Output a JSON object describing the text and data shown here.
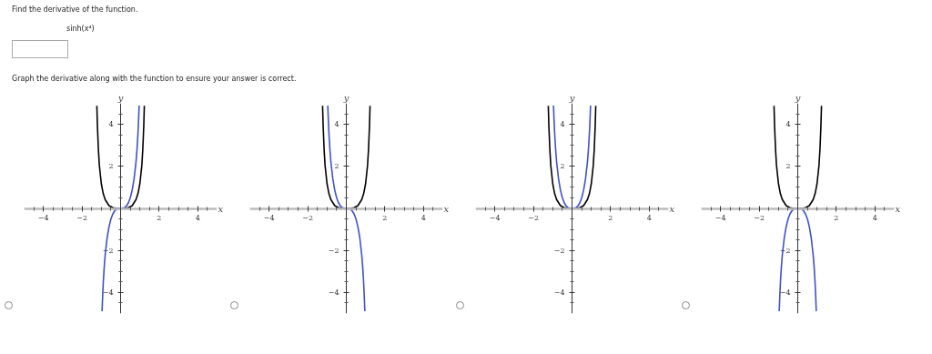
{
  "chart_data": [
    {
      "type": "other",
      "annotations": [
        "Find the derivative of the function.",
        "sinh(x⁴)",
        "Graph the derivative along with the function to ensure your answer is correct."
      ]
    },
    {
      "type": "line",
      "xlabel": "x",
      "ylabel": "y",
      "xlim": [
        -5,
        5
      ],
      "ylim": [
        -5,
        5
      ],
      "xticks": [
        {
          "value": -4.5,
          "label": null
        },
        {
          "value": -4,
          "label": "−4"
        },
        {
          "value": -3.5,
          "label": null
        },
        {
          "value": -3,
          "label": null
        },
        {
          "value": -2.5,
          "label": null
        },
        {
          "value": -2,
          "label": "−2"
        },
        {
          "value": -1.5,
          "label": null
        },
        {
          "value": -1,
          "label": null
        },
        {
          "value": -0.5,
          "label": null
        },
        {
          "value": 0.5,
          "label": null
        },
        {
          "value": 1,
          "label": null
        },
        {
          "value": 1.5,
          "label": null
        },
        {
          "value": 2,
          "label": "2"
        },
        {
          "value": 2.5,
          "label": null
        },
        {
          "value": 3,
          "label": null
        },
        {
          "value": 3.5,
          "label": null
        },
        {
          "value": 4,
          "label": "4"
        },
        {
          "value": 4.5,
          "label": null
        }
      ],
      "yticks": [
        {
          "value": -4.5,
          "label": null
        },
        {
          "value": -4,
          "label": "−4"
        },
        {
          "value": -3.5,
          "label": null
        },
        {
          "value": -3,
          "label": null
        },
        {
          "value": -2.5,
          "label": null
        },
        {
          "value": -2,
          "label": "−2"
        },
        {
          "value": -1.5,
          "label": null
        },
        {
          "value": -1,
          "label": null
        },
        {
          "value": -0.5,
          "label": null
        },
        {
          "value": 0.5,
          "label": null
        },
        {
          "value": 1,
          "label": null
        },
        {
          "value": 1.5,
          "label": null
        },
        {
          "value": 2,
          "label": "2"
        },
        {
          "value": 2.5,
          "label": null
        },
        {
          "value": 3,
          "label": null
        },
        {
          "value": 3.5,
          "label": null
        },
        {
          "value": 4,
          "label": "4"
        },
        {
          "value": 4.5,
          "label": null
        }
      ],
      "series": [
        {
          "color": "#000000",
          "x": [
            -1.23,
            -1.2,
            -1.15,
            -1.1,
            -1,
            -0.9,
            -0.8,
            -0.6,
            -0.4,
            -0.2,
            0,
            0.2,
            0.4,
            0.6,
            0.8,
            0.9,
            1,
            1.1,
            1.15,
            1.2,
            1.23
          ],
          "values": [
            4.88,
            3.91,
            2.79,
            2.04,
            1.18,
            0.7,
            0.42,
            0.13,
            0.03,
            0,
            0,
            0,
            0.03,
            0.13,
            0.42,
            0.7,
            1.18,
            2.04,
            2.79,
            3.91,
            4.88
          ]
        },
        {
          "color": "#3f51c6",
          "x": [
            -0.96,
            -0.93,
            -0.9,
            -0.85,
            -0.8,
            -0.7,
            -0.6,
            -0.5,
            -0.4,
            -0.3,
            -0.2,
            0,
            0.2,
            0.3,
            0.4,
            0.5,
            0.6,
            0.7,
            0.8,
            0.85,
            0.9,
            0.93,
            0.96
          ],
          "values": [
            -4.89,
            -4.16,
            -3.56,
            -2.8,
            -2.22,
            -1.41,
            -0.87,
            -0.5,
            -0.26,
            -0.11,
            -0.03,
            0,
            0.03,
            0.11,
            0.26,
            0.5,
            0.87,
            1.41,
            2.22,
            2.8,
            3.56,
            4.16,
            4.89
          ]
        }
      ]
    },
    {
      "type": "line",
      "xlabel": "x",
      "ylabel": "y",
      "xlim": [
        -5,
        5
      ],
      "ylim": [
        -5,
        5
      ],
      "xticks": [
        {
          "value": -4.5,
          "label": null
        },
        {
          "value": -4,
          "label": "−4"
        },
        {
          "value": -3.5,
          "label": null
        },
        {
          "value": -3,
          "label": null
        },
        {
          "value": -2.5,
          "label": null
        },
        {
          "value": -2,
          "label": "−2"
        },
        {
          "value": -1.5,
          "label": null
        },
        {
          "value": -1,
          "label": null
        },
        {
          "value": -0.5,
          "label": null
        },
        {
          "value": 0.5,
          "label": null
        },
        {
          "value": 1,
          "label": null
        },
        {
          "value": 1.5,
          "label": null
        },
        {
          "value": 2,
          "label": "2"
        },
        {
          "value": 2.5,
          "label": null
        },
        {
          "value": 3,
          "label": null
        },
        {
          "value": 3.5,
          "label": null
        },
        {
          "value": 4,
          "label": "4"
        },
        {
          "value": 4.5,
          "label": null
        }
      ],
      "yticks": [
        {
          "value": -4.5,
          "label": null
        },
        {
          "value": -4,
          "label": "−4"
        },
        {
          "value": -3.5,
          "label": null
        },
        {
          "value": -3,
          "label": null
        },
        {
          "value": -2.5,
          "label": null
        },
        {
          "value": -2,
          "label": "−2"
        },
        {
          "value": -1.5,
          "label": null
        },
        {
          "value": -1,
          "label": null
        },
        {
          "value": -0.5,
          "label": null
        },
        {
          "value": 0.5,
          "label": null
        },
        {
          "value": 1,
          "label": null
        },
        {
          "value": 1.5,
          "label": null
        },
        {
          "value": 2,
          "label": "2"
        },
        {
          "value": 2.5,
          "label": null
        },
        {
          "value": 3,
          "label": null
        },
        {
          "value": 3.5,
          "label": null
        },
        {
          "value": 4,
          "label": "4"
        },
        {
          "value": 4.5,
          "label": null
        }
      ],
      "series": [
        {
          "color": "#000000",
          "x": [
            -1.23,
            -1.2,
            -1.15,
            -1.1,
            -1,
            -0.9,
            -0.8,
            -0.6,
            -0.4,
            -0.2,
            0,
            0.2,
            0.4,
            0.6,
            0.8,
            0.9,
            1,
            1.1,
            1.15,
            1.2,
            1.23
          ],
          "values": [
            4.88,
            3.91,
            2.79,
            2.04,
            1.18,
            0.7,
            0.42,
            0.13,
            0.03,
            0,
            0,
            0,
            0.03,
            0.13,
            0.42,
            0.7,
            1.18,
            2.04,
            2.79,
            3.91,
            4.88
          ]
        },
        {
          "color": "#3f51c6",
          "x": [
            -0.96,
            -0.93,
            -0.9,
            -0.85,
            -0.8,
            -0.7,
            -0.6,
            -0.5,
            -0.4,
            -0.3,
            -0.2,
            0,
            0.2,
            0.3,
            0.4,
            0.5,
            0.6,
            0.7,
            0.8,
            0.85,
            0.9,
            0.93,
            0.96
          ],
          "values": [
            4.89,
            4.16,
            3.56,
            2.8,
            2.22,
            1.41,
            0.87,
            0.5,
            0.26,
            0.11,
            0.03,
            0,
            -0.03,
            -0.11,
            -0.26,
            -0.5,
            -0.87,
            -1.41,
            -2.22,
            -2.8,
            -3.56,
            -4.16,
            -4.89
          ]
        }
      ]
    },
    {
      "type": "line",
      "xlabel": "x",
      "ylabel": "y",
      "xlim": [
        -5,
        5
      ],
      "ylim": [
        -5,
        5
      ],
      "xticks": [
        {
          "value": -4.5,
          "label": null
        },
        {
          "value": -4,
          "label": "−4"
        },
        {
          "value": -3.5,
          "label": null
        },
        {
          "value": -3,
          "label": null
        },
        {
          "value": -2.5,
          "label": null
        },
        {
          "value": -2,
          "label": "−2"
        },
        {
          "value": -1.5,
          "label": null
        },
        {
          "value": -1,
          "label": null
        },
        {
          "value": -0.5,
          "label": null
        },
        {
          "value": 0.5,
          "label": null
        },
        {
          "value": 1,
          "label": null
        },
        {
          "value": 1.5,
          "label": null
        },
        {
          "value": 2,
          "label": "2"
        },
        {
          "value": 2.5,
          "label": null
        },
        {
          "value": 3,
          "label": null
        },
        {
          "value": 3.5,
          "label": null
        },
        {
          "value": 4,
          "label": "4"
        },
        {
          "value": 4.5,
          "label": null
        }
      ],
      "yticks": [
        {
          "value": -4.5,
          "label": null
        },
        {
          "value": -4,
          "label": "−4"
        },
        {
          "value": -3.5,
          "label": null
        },
        {
          "value": -3,
          "label": null
        },
        {
          "value": -2.5,
          "label": null
        },
        {
          "value": -2,
          "label": "−2"
        },
        {
          "value": -1.5,
          "label": null
        },
        {
          "value": -1,
          "label": null
        },
        {
          "value": -0.5,
          "label": null
        },
        {
          "value": 0.5,
          "label": null
        },
        {
          "value": 1,
          "label": null
        },
        {
          "value": 1.5,
          "label": null
        },
        {
          "value": 2,
          "label": "2"
        },
        {
          "value": 2.5,
          "label": null
        },
        {
          "value": 3,
          "label": null
        },
        {
          "value": 3.5,
          "label": null
        },
        {
          "value": 4,
          "label": "4"
        },
        {
          "value": 4.5,
          "label": null
        }
      ],
      "series": [
        {
          "color": "#000000",
          "x": [
            -1.23,
            -1.2,
            -1.15,
            -1.1,
            -1,
            -0.9,
            -0.8,
            -0.6,
            -0.4,
            -0.2,
            0,
            0.2,
            0.4,
            0.6,
            0.8,
            0.9,
            1,
            1.1,
            1.15,
            1.2,
            1.23
          ],
          "values": [
            4.88,
            3.91,
            2.79,
            2.04,
            1.18,
            0.7,
            0.42,
            0.13,
            0.03,
            0,
            0,
            0,
            0.03,
            0.13,
            0.42,
            0.7,
            1.18,
            2.04,
            2.79,
            3.91,
            4.88
          ]
        },
        {
          "color": "#3f51c6",
          "x": [
            -0.96,
            -0.93,
            -0.9,
            -0.85,
            -0.8,
            -0.7,
            -0.6,
            -0.5,
            -0.4,
            -0.3,
            -0.2,
            0,
            0.2,
            0.3,
            0.4,
            0.5,
            0.6,
            0.7,
            0.8,
            0.85,
            0.9,
            0.93,
            0.96
          ],
          "values": [
            4.89,
            4.16,
            3.56,
            2.8,
            2.22,
            1.41,
            0.87,
            0.5,
            0.26,
            0.11,
            0.03,
            0,
            0.03,
            0.11,
            0.26,
            0.5,
            0.87,
            1.41,
            2.22,
            2.8,
            3.56,
            4.16,
            4.89
          ]
        }
      ]
    },
    {
      "type": "line",
      "xlabel": "x",
      "ylabel": "y",
      "xlim": [
        -5,
        5
      ],
      "ylim": [
        -5,
        5
      ],
      "xticks": [
        {
          "value": -4.5,
          "label": null
        },
        {
          "value": -4,
          "label": "−4"
        },
        {
          "value": -3.5,
          "label": null
        },
        {
          "value": -3,
          "label": null
        },
        {
          "value": -2.5,
          "label": null
        },
        {
          "value": -2,
          "label": "−2"
        },
        {
          "value": -1.5,
          "label": null
        },
        {
          "value": -1,
          "label": null
        },
        {
          "value": -0.5,
          "label": null
        },
        {
          "value": 0.5,
          "label": null
        },
        {
          "value": 1,
          "label": null
        },
        {
          "value": 1.5,
          "label": null
        },
        {
          "value": 2,
          "label": "2"
        },
        {
          "value": 2.5,
          "label": null
        },
        {
          "value": 3,
          "label": null
        },
        {
          "value": 3.5,
          "label": null
        },
        {
          "value": 4,
          "label": "4"
        },
        {
          "value": 4.5,
          "label": null
        }
      ],
      "yticks": [
        {
          "value": -4.5,
          "label": null
        },
        {
          "value": -4,
          "label": "−4"
        },
        {
          "value": -3.5,
          "label": null
        },
        {
          "value": -3,
          "label": null
        },
        {
          "value": -2.5,
          "label": null
        },
        {
          "value": -2,
          "label": "−2"
        },
        {
          "value": -1.5,
          "label": null
        },
        {
          "value": -1,
          "label": null
        },
        {
          "value": -0.5,
          "label": null
        },
        {
          "value": 0.5,
          "label": null
        },
        {
          "value": 1,
          "label": null
        },
        {
          "value": 1.5,
          "label": null
        },
        {
          "value": 2,
          "label": "2"
        },
        {
          "value": 2.5,
          "label": null
        },
        {
          "value": 3,
          "label": null
        },
        {
          "value": 3.5,
          "label": null
        },
        {
          "value": 4,
          "label": "4"
        },
        {
          "value": 4.5,
          "label": null
        }
      ],
      "series": [
        {
          "color": "#000000",
          "x": [
            -1.23,
            -1.2,
            -1.15,
            -1.1,
            -1,
            -0.9,
            -0.8,
            -0.6,
            -0.4,
            -0.2,
            0,
            0.2,
            0.4,
            0.6,
            0.8,
            0.9,
            1,
            1.1,
            1.15,
            1.2,
            1.23
          ],
          "values": [
            4.88,
            3.91,
            2.79,
            2.04,
            1.18,
            0.7,
            0.42,
            0.13,
            0.03,
            0,
            0,
            0,
            0.03,
            0.13,
            0.42,
            0.7,
            1.18,
            2.04,
            2.79,
            3.91,
            4.88
          ]
        },
        {
          "color": "#3f51c6",
          "x": [
            -0.96,
            -0.93,
            -0.9,
            -0.85,
            -0.8,
            -0.7,
            -0.6,
            -0.5,
            -0.4,
            -0.3,
            -0.2,
            0,
            0.2,
            0.3,
            0.4,
            0.5,
            0.6,
            0.7,
            0.8,
            0.85,
            0.9,
            0.93,
            0.96
          ],
          "values": [
            -4.89,
            -4.16,
            -3.56,
            -2.8,
            -2.22,
            -1.41,
            -0.87,
            -0.5,
            -0.26,
            -0.11,
            -0.03,
            0,
            -0.03,
            -0.11,
            -0.26,
            -0.5,
            -0.87,
            -1.41,
            -2.22,
            -2.8,
            -3.56,
            -4.16,
            -4.89
          ]
        }
      ]
    }
  ]
}
